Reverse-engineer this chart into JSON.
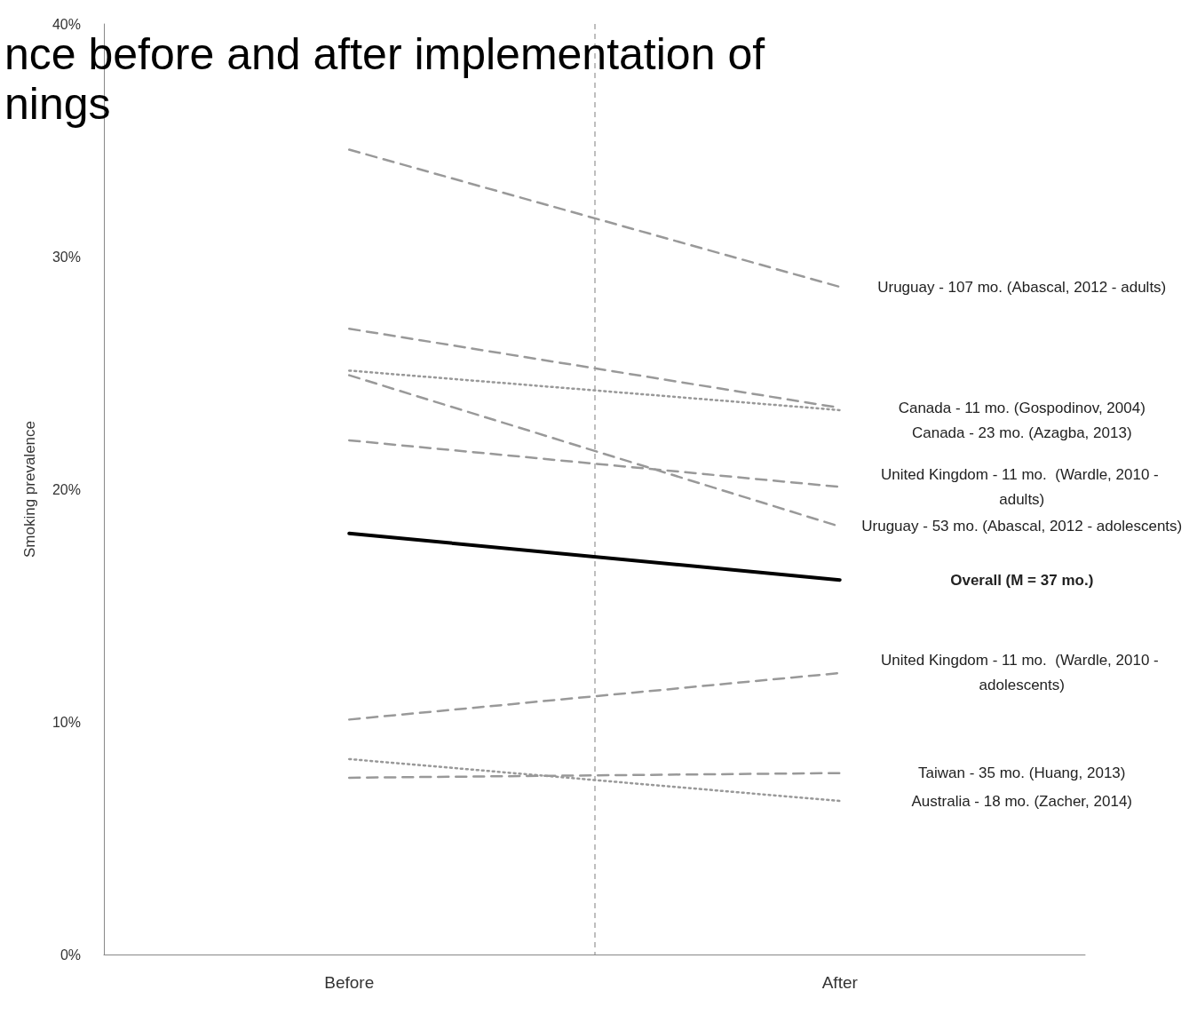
{
  "chart_data": {
    "type": "line",
    "title": "nce before and after implementation of\nnings",
    "ylabel": "Smoking prevalence",
    "categories": [
      "Before",
      "After"
    ],
    "ylim": [
      0,
      40
    ],
    "yticks": [
      {
        "value": 0,
        "label": "0%"
      },
      {
        "value": 10,
        "label": "10%"
      },
      {
        "value": 20,
        "label": "20%"
      },
      {
        "value": 30,
        "label": "30%"
      },
      {
        "value": 40,
        "label": "40%"
      }
    ],
    "grid": "x",
    "legend": false,
    "series": [
      {
        "name": "Uruguay - 107 mo. (Abascal, 2012 - adults)",
        "color": "#999999",
        "line_style": "dashed",
        "values": [
          34.6,
          28.7
        ]
      },
      {
        "name": "Canada - 11 mo. (Gospodinov, 2004)",
        "color": "#999999",
        "line_style": "dashed",
        "values": [
          26.9,
          23.5
        ]
      },
      {
        "name": "Canada - 23 mo. (Azagba, 2013)",
        "color": "#999999",
        "line_style": "dotted",
        "values": [
          25.1,
          23.4
        ]
      },
      {
        "name": "United Kingdom - 11 mo.  (Wardle, 2010 - adults)",
        "color": "#999999",
        "line_style": "dashed",
        "values": [
          22.1,
          20.1
        ]
      },
      {
        "name": "Uruguay - 53 mo. (Abascal, 2012 - adolescents)",
        "color": "#999999",
        "line_style": "dashed",
        "values": [
          24.9,
          18.4
        ]
      },
      {
        "name": "Overall (M = 37 mo.)",
        "color": "#000000",
        "line_style": "solid",
        "values": [
          18.1,
          16.1
        ]
      },
      {
        "name": "United Kingdom - 11 mo.  (Wardle, 2010 - adolescents)",
        "color": "#999999",
        "line_style": "dashed",
        "values": [
          10.1,
          12.1
        ]
      },
      {
        "name": "Taiwan - 35 mo. (Huang, 2013)",
        "color": "#999999",
        "line_style": "dashed",
        "values": [
          7.6,
          7.8
        ]
      },
      {
        "name": "Australia - 18 mo. (Zacher, 2014)",
        "color": "#999999",
        "line_style": "dotted",
        "values": [
          8.4,
          6.6
        ]
      }
    ]
  }
}
